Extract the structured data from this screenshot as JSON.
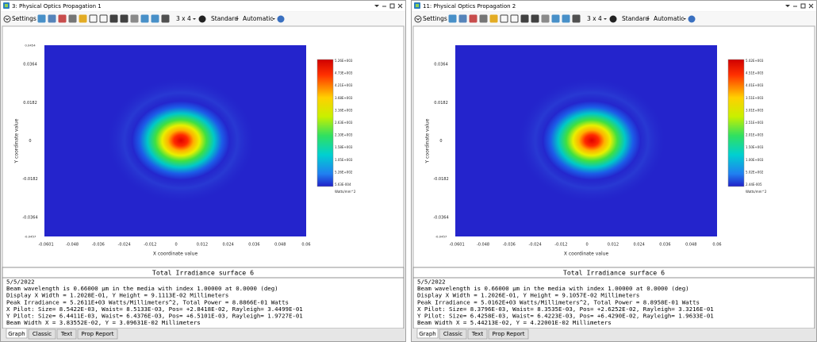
{
  "windows": [
    {
      "title": "3: Physical Optics Propagation 1",
      "toolbar": {
        "settings": "Settings",
        "layout": "3 x 4",
        "mode": "Standard",
        "scale": "Automatic"
      },
      "plot": {
        "x_label": "X coordinate value",
        "y_label": "Y coordinate value",
        "y_ticks": [
          "0.0454",
          "0.0364",
          "0.0182",
          "0",
          "-0.0182",
          "-0.0364",
          "-0.0457"
        ],
        "x_ticks": [
          "-0.0601",
          "-0.048",
          "-0.036",
          "-0.024",
          "-0.012",
          "0",
          "0.012",
          "0.024",
          "0.036",
          "0.048",
          "0.06"
        ],
        "colorbar": [
          "5.26E+003",
          "4.73E+003",
          "4.21E+003",
          "3.68E+003",
          "3.16E+003",
          "2.63E+003",
          "2.10E+003",
          "1.58E+003",
          "1.05E+003",
          "5.26E+002",
          "5.63E-004"
        ],
        "colorbar_unit": "Watts/mm^2"
      },
      "caption": "Total Irradiance surface 6",
      "lines": [
        "5/5/2022",
        "Beam wavelength is 0.66000 µm in the media with index 1.00000 at 0.0000 (deg)",
        "Display X Width = 1.2028E-01, Y Height = 9.1113E-02 Millimeters",
        "Peak Irradiance = 5.2611E+03 Watts/Millimeters^2, Total Power = 8.8866E-01 Watts",
        "X Pilot: Size= 8.5422E-03, Waist= 8.5133E-03, Pos= +2.8418E-02, Rayleigh= 3.4499E-01",
        "Y Pilot: Size= 6.4411E-03, Waist= 6.4376E-03, Pos= +6.5101E-03, Rayleigh= 1.9727E-01",
        "Beam Width X = 3.83552E-02, Y = 3.09631E-02 Millimeters"
      ],
      "tabs": [
        "Graph",
        "Classic",
        "Text",
        "Prop Report"
      ]
    },
    {
      "title": "11: Physical Optics Propagation 2",
      "toolbar": {
        "settings": "Settings",
        "layout": "3 x 4",
        "mode": "Standard",
        "scale": "Automatic"
      },
      "plot": {
        "x_label": "X coordinate value",
        "y_label": "Y coordinate value",
        "y_ticks": [
          "0.0364",
          "0.0182",
          "0",
          "-0.0182",
          "-0.0364",
          "-0.0457"
        ],
        "x_ticks": [
          "-0.0601",
          "-0.048",
          "-0.036",
          "-0.024",
          "-0.012",
          "0",
          "0.012",
          "0.024",
          "0.036",
          "0.048",
          "0.06"
        ],
        "colorbar": [
          "5.02E+003",
          "4.51E+003",
          "4.01E+003",
          "3.51E+003",
          "3.01E+003",
          "2.51E+003",
          "2.01E+003",
          "1.50E+003",
          "1.00E+003",
          "5.02E+002",
          "2.44E-005"
        ],
        "colorbar_unit": "Watts/mm^2"
      },
      "caption": "Total Irradiance surface 6",
      "lines": [
        "5/5/2022",
        "Beam wavelength is 0.66000 µm in the media with index 1.00000 at 0.0000 (deg)",
        "Display X Width = 1.2026E-01, Y Height = 9.1057E-02 Millimeters",
        "Peak Irradiance = 5.0162E+03 Watts/Millimeters^2, Total Power = 8.8958E-01 Watts",
        "X Pilot: Size= 8.3796E-03, Waist= 8.3535E-03, Pos= +2.6252E-02, Rayleigh= 3.3216E-01",
        "Y Pilot: Size= 6.4258E-03, Waist= 6.4223E-03, Pos= +6.4290E-02, Rayleigh= 1.9633E-01",
        "Beam Width X = 5.44213E-02, Y = 4.22001E-02 Millimeters"
      ],
      "tabs": [
        "Graph",
        "Classic",
        "Text",
        "Prop Report"
      ]
    }
  ]
}
